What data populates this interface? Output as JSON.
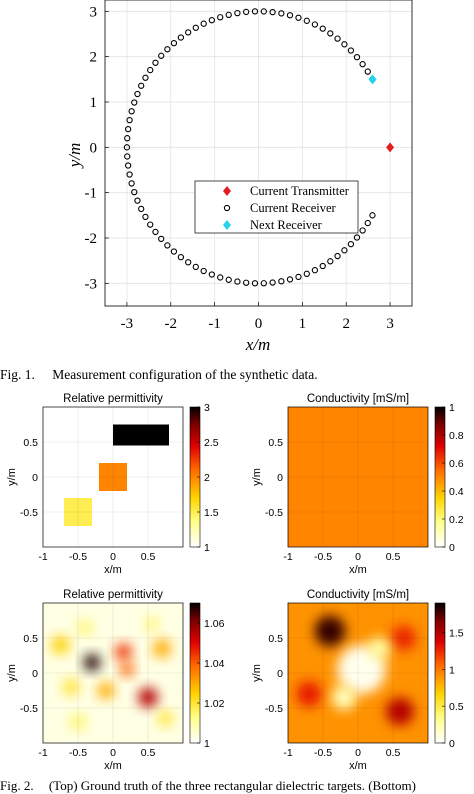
{
  "figure1": {
    "caption_label": "Fig. 1.",
    "caption_text": "Measurement configuration of the synthetic data.",
    "chart_data": {
      "type": "scatter",
      "xlabel": "x/m",
      "ylabel": "y/m",
      "xlim": [
        -3.5,
        3.5
      ],
      "ylim": [
        -3.5,
        3.25
      ],
      "xticks": [
        -3,
        -2,
        -1,
        0,
        1,
        2,
        3
      ],
      "yticks": [
        -3,
        -2,
        -1,
        0,
        1,
        2,
        3
      ],
      "grid": true,
      "legend_position": "lower-right",
      "series": [
        {
          "name": "Current Transmitter",
          "marker": "diamond",
          "color": "#e02020",
          "points": [
            [
              3,
              0
            ]
          ]
        },
        {
          "name": "Current Receiver",
          "marker": "circle-open",
          "color": "#000000",
          "arc": {
            "radius": 3,
            "start_deg": 30,
            "end_deg": 330,
            "count": 79
          }
        },
        {
          "name": "Next Receiver",
          "marker": "diamond",
          "color": "#22d3ee",
          "points": [
            [
              2.6,
              1.5
            ]
          ]
        }
      ]
    }
  },
  "figure2": {
    "caption_label": "Fig. 2.",
    "caption_text": "(Top) Ground truth of the three rectangular dielectric targets. (Bottom)",
    "panels": [
      {
        "title": "Relative permittivity",
        "xlabel": "x/m",
        "ylabel": "y/m",
        "xticks": [
          "-1",
          "-0.5",
          "0",
          "0.5"
        ],
        "yticks": [
          "0.5",
          "0",
          "-0.5"
        ],
        "colorbar_ticks": [
          "3",
          "2.5",
          "2",
          "1.5",
          "1"
        ],
        "colormap": "hot-reversed",
        "chart_data": {
          "type": "heatmap",
          "xlim": [
            -1,
            1
          ],
          "ylim": [
            -1,
            1
          ],
          "clim": [
            1,
            3
          ],
          "background": 1,
          "rectangles": [
            {
              "x": [
                0,
                0.8
              ],
              "y": [
                0.45,
                0.75
              ],
              "value": 3
            },
            {
              "x": [
                -0.2,
                0.2
              ],
              "y": [
                -0.2,
                0.2
              ],
              "value": 2
            },
            {
              "x": [
                -0.7,
                -0.3
              ],
              "y": [
                -0.7,
                -0.3
              ],
              "value": 1.5
            }
          ]
        }
      },
      {
        "title": "Conductivity [mS/m]",
        "xlabel": "x/m",
        "ylabel": "y/m",
        "xticks": [
          "-1",
          "-0.5",
          "0",
          "0.5"
        ],
        "yticks": [
          "0.5",
          "0",
          "-0.5"
        ],
        "colorbar_ticks": [
          "1",
          "0.8",
          "0.6",
          "0.4",
          "0.2",
          "0"
        ],
        "colormap": "hot-reversed",
        "chart_data": {
          "type": "heatmap",
          "xlim": [
            -1,
            1
          ],
          "ylim": [
            -1,
            1
          ],
          "clim": [
            0,
            1
          ],
          "background": 0.5,
          "rectangles": []
        }
      },
      {
        "title": "Relative permittivity",
        "xlabel": "x/m",
        "ylabel": "y/m",
        "xticks": [
          "-1",
          "-0.5",
          "0",
          "0.5"
        ],
        "yticks": [
          "0.5",
          "0",
          "-0.5"
        ],
        "colorbar_ticks": [
          "1.06",
          "1.04",
          "1.02",
          "1"
        ],
        "colormap": "hot-reversed",
        "chart_data": {
          "type": "heatmap",
          "xlim": [
            -1,
            1
          ],
          "ylim": [
            -1,
            1
          ],
          "clim": [
            1,
            1.07
          ],
          "background": 1.003,
          "blobs": [
            {
              "x": -0.3,
              "y": 0.15,
              "value": 1.068,
              "r": 0.12
            },
            {
              "x": 0.15,
              "y": 0.3,
              "value": 1.045,
              "r": 0.12
            },
            {
              "x": 0.2,
              "y": 0.05,
              "value": 1.04,
              "r": 0.1
            },
            {
              "x": 0.5,
              "y": -0.35,
              "value": 1.055,
              "r": 0.14
            },
            {
              "x": 0.7,
              "y": 0.35,
              "value": 1.03,
              "r": 0.13
            },
            {
              "x": -0.75,
              "y": 0.4,
              "value": 1.025,
              "r": 0.13
            },
            {
              "x": -0.1,
              "y": -0.25,
              "value": 1.03,
              "r": 0.12
            },
            {
              "x": -0.6,
              "y": -0.2,
              "value": 1.02,
              "r": 0.12
            },
            {
              "x": 0.75,
              "y": -0.65,
              "value": 1.02,
              "r": 0.11
            },
            {
              "x": -0.5,
              "y": -0.7,
              "value": 1.015,
              "r": 0.12
            },
            {
              "x": 0.55,
              "y": 0.7,
              "value": 1.015,
              "r": 0.1
            },
            {
              "x": -0.4,
              "y": 0.65,
              "value": 1.015,
              "r": 0.11
            }
          ]
        }
      },
      {
        "title": "Conductivity [mS/m]",
        "xlabel": "x/m",
        "ylabel": "y/m",
        "xticks": [
          "-1",
          "-0.5",
          "0",
          "0.5"
        ],
        "yticks": [
          "0.5",
          "0",
          "-0.5"
        ],
        "colorbar_ticks": [
          "1.5",
          "1",
          "0.5",
          "0"
        ],
        "colormap": "hot-reversed",
        "chart_data": {
          "type": "heatmap",
          "xlim": [
            -1,
            1
          ],
          "ylim": [
            -1,
            1
          ],
          "clim": [
            0,
            1.9
          ],
          "background": 0.9,
          "blobs": [
            {
              "x": -0.4,
              "y": 0.6,
              "value": 1.8,
              "r": 0.22
            },
            {
              "x": 0.6,
              "y": -0.55,
              "value": 1.5,
              "r": 0.2
            },
            {
              "x": -0.7,
              "y": -0.3,
              "value": 1.3,
              "r": 0.18
            },
            {
              "x": 0.65,
              "y": 0.5,
              "value": 1.25,
              "r": 0.18
            },
            {
              "x": 0.05,
              "y": 0.05,
              "value": 0.05,
              "r": 0.35
            },
            {
              "x": -0.2,
              "y": -0.35,
              "value": 0.2,
              "r": 0.18
            },
            {
              "x": 0.3,
              "y": 0.35,
              "value": 0.25,
              "r": 0.16
            }
          ]
        }
      }
    ]
  }
}
